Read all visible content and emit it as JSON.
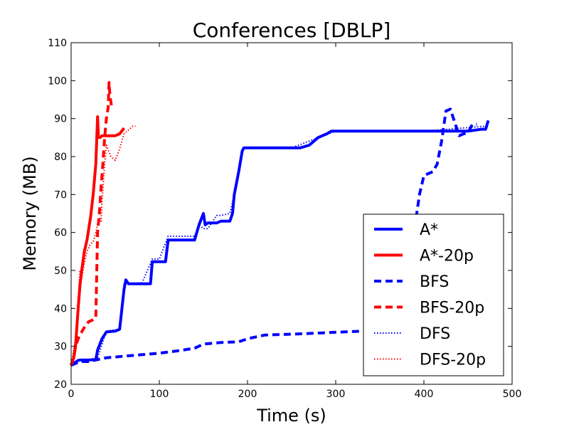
{
  "chart_data": {
    "type": "line",
    "title": "Conferences [DBLP]",
    "xlabel": "Time (s)",
    "ylabel": "Memory (MB)",
    "xlim": [
      0,
      500
    ],
    "ylim": [
      20,
      110
    ],
    "xticks": [
      "0",
      "100",
      "200",
      "300",
      "400",
      "500"
    ],
    "yticks": [
      "20",
      "30",
      "40",
      "50",
      "60",
      "70",
      "80",
      "90",
      "100",
      "110"
    ],
    "grid": false,
    "legend_position": "lower-right",
    "series": [
      {
        "name": "A*",
        "color": "#0000ff",
        "style": "solid",
        "x": [
          0,
          8,
          10,
          20,
          28,
          30,
          35,
          40,
          50,
          55,
          60,
          62,
          65,
          80,
          90,
          92,
          100,
          107,
          110,
          120,
          130,
          140,
          145,
          150,
          152,
          155,
          165,
          170,
          175,
          180,
          183,
          185,
          190,
          194,
          196,
          200,
          220,
          260,
          270,
          280,
          290,
          295,
          300,
          350,
          400,
          450,
          465,
          470,
          473
        ],
        "y": [
          25,
          26.3,
          26.4,
          26.4,
          26.5,
          29,
          32,
          33.8,
          34,
          34.5,
          45,
          47.5,
          46.5,
          46.5,
          46.5,
          52.3,
          52.3,
          52.3,
          58,
          58,
          58,
          58,
          62,
          65,
          62,
          62.5,
          62.5,
          63,
          63,
          63,
          65,
          70,
          76,
          81.5,
          82.3,
          82.3,
          82.3,
          82.3,
          83,
          85,
          86,
          86.7,
          86.7,
          86.7,
          86.7,
          86.7,
          87.2,
          87.2,
          89.5
        ]
      },
      {
        "name": "A*-20p",
        "color": "#ff0000",
        "style": "solid",
        "x": [
          0,
          3,
          5,
          8,
          10,
          12,
          15,
          18,
          22,
          25,
          28,
          30,
          31,
          33,
          35,
          40,
          45,
          50,
          55,
          60
        ],
        "y": [
          25,
          27,
          30,
          40,
          46,
          50,
          55,
          58,
          64,
          70,
          78,
          90.5,
          85,
          85,
          85.5,
          85.5,
          85.5,
          85.5,
          86,
          87.5
        ]
      },
      {
        "name": "BFS",
        "color": "#0000ff",
        "style": "dashed",
        "x": [
          0,
          10,
          20,
          30,
          40,
          60,
          80,
          100,
          120,
          140,
          150,
          160,
          170,
          190,
          200,
          210,
          220,
          250,
          280,
          300,
          330,
          350,
          380,
          385,
          390,
          395,
          400,
          410,
          415,
          420,
          425,
          430,
          435,
          440,
          445,
          450,
          455,
          460
        ],
        "y": [
          25,
          26,
          26,
          26.5,
          27,
          27.4,
          27.8,
          28.2,
          28.8,
          29.5,
          30.6,
          30.8,
          31,
          31.2,
          32,
          32.5,
          33,
          33.2,
          33.5,
          33.7,
          34,
          34.5,
          45,
          55,
          62,
          70,
          75,
          76,
          78,
          84,
          92,
          92.5,
          89,
          85.5,
          86,
          86.3,
          88.5,
          88.5
        ]
      },
      {
        "name": "BFS-20p",
        "color": "#ff0000",
        "style": "dashed",
        "x": [
          0,
          3,
          5,
          8,
          10,
          15,
          20,
          25,
          28,
          30,
          32,
          34,
          36,
          38,
          40,
          42,
          43,
          44,
          46
        ],
        "y": [
          25,
          27,
          30,
          32,
          33,
          35,
          36.5,
          37,
          37.5,
          60,
          65,
          72,
          78,
          85,
          90,
          93,
          99.5,
          96,
          93
        ]
      },
      {
        "name": "DFS",
        "color": "#0000ff",
        "style": "dotted",
        "x": [
          0,
          10,
          20,
          30,
          40,
          55,
          60,
          65,
          80,
          92,
          100,
          110,
          120,
          140,
          145,
          150,
          155,
          165,
          170,
          180,
          185,
          190,
          195,
          200,
          250,
          300,
          400,
          470
        ],
        "y": [
          25,
          26.5,
          26.5,
          27,
          34,
          34.5,
          46.5,
          46.5,
          46.5,
          53,
          53,
          59,
          59,
          59,
          62,
          61,
          61,
          64.5,
          64.5,
          65,
          70,
          76,
          82.5,
          82.3,
          82.3,
          86.7,
          86.7,
          88
        ]
      },
      {
        "name": "DFS-20p",
        "color": "#ff0000",
        "style": "dotted",
        "x": [
          0,
          5,
          8,
          10,
          12,
          15,
          18,
          22,
          25,
          28,
          30,
          32,
          34,
          35,
          38,
          40,
          45,
          50,
          55,
          60,
          65,
          70,
          73
        ],
        "y": [
          25,
          32,
          42,
          50,
          48,
          52,
          55,
          57,
          57.5,
          60,
          62,
          64,
          63,
          68,
          78,
          83,
          80,
          79,
          82,
          86,
          87,
          88,
          88
        ]
      }
    ]
  }
}
